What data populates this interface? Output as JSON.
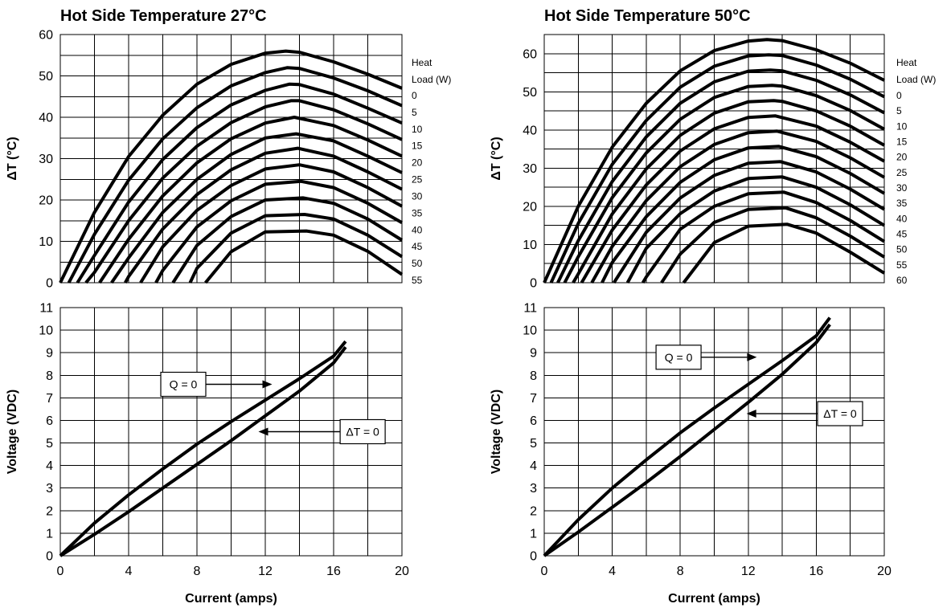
{
  "chart_data": [
    {
      "type": "line",
      "title": "Hot Side Temperature 27°C",
      "ylabel": "ΔT (°C)",
      "xlim": [
        0,
        20
      ],
      "ylim": [
        0,
        60
      ],
      "yticks": [
        0,
        10,
        20,
        30,
        40,
        50,
        60
      ],
      "grid": true,
      "legend_position": "right",
      "legend_title_lines": [
        "Heat",
        "Load (W)"
      ],
      "series": [
        {
          "name": "0",
          "x": [
            0,
            2,
            4,
            6,
            8,
            10,
            12,
            13.2,
            14,
            16,
            18,
            20
          ],
          "y": [
            0,
            17,
            30.5,
            40.5,
            48,
            52.8,
            55.5,
            56,
            55.7,
            53.4,
            50.4,
            47
          ]
        },
        {
          "name": "5",
          "x": [
            0.5,
            2,
            4,
            6,
            8,
            10,
            12,
            13.3,
            14,
            16,
            18,
            20
          ],
          "y": [
            0,
            11.7,
            24.8,
            34.8,
            42.3,
            47.6,
            50.8,
            52,
            51.8,
            49.5,
            46.4,
            42.8
          ]
        },
        {
          "name": "10",
          "x": [
            1,
            2,
            4,
            6,
            8,
            10,
            12,
            13.4,
            14,
            16,
            18,
            20
          ],
          "y": [
            0,
            6.6,
            19.5,
            29.8,
            37.5,
            43,
            46.5,
            48,
            47.9,
            45.6,
            42.2,
            38.6
          ]
        },
        {
          "name": "15",
          "x": [
            1.5,
            2,
            4,
            6,
            8,
            10,
            12,
            13.5,
            14,
            16,
            18,
            20
          ],
          "y": [
            0,
            2.5,
            15,
            25.3,
            33,
            38.7,
            42.5,
            44,
            44,
            41.8,
            38.4,
            34.6
          ]
        },
        {
          "name": "20",
          "x": [
            2.3,
            4,
            6,
            8,
            10,
            12,
            13.7,
            16,
            18,
            20
          ],
          "y": [
            0,
            10.5,
            21,
            29,
            34.8,
            38.6,
            40,
            38,
            34.5,
            30.6
          ]
        },
        {
          "name": "25",
          "x": [
            3,
            4,
            6,
            8,
            10,
            12,
            13.8,
            16,
            18,
            20
          ],
          "y": [
            0,
            6,
            17,
            25,
            31,
            35,
            36,
            34.3,
            30.6,
            26.6
          ]
        },
        {
          "name": "30",
          "x": [
            3.8,
            4,
            6,
            8,
            10,
            12,
            13.9,
            16,
            18,
            20
          ],
          "y": [
            0,
            1.5,
            13,
            21.3,
            27.3,
            31.3,
            32.5,
            30.6,
            26.8,
            22.6
          ]
        },
        {
          "name": "35",
          "x": [
            4.7,
            6,
            8,
            10,
            12,
            14,
            16,
            18,
            20
          ],
          "y": [
            0,
            8.7,
            17.5,
            23.5,
            27.5,
            28.5,
            26.8,
            23,
            18.5
          ]
        },
        {
          "name": "40",
          "x": [
            5.6,
            6,
            8,
            10,
            12,
            14.1,
            16,
            18,
            20
          ],
          "y": [
            0,
            3,
            13.5,
            19.8,
            23.8,
            24.5,
            23,
            19.2,
            14.5
          ]
        },
        {
          "name": "45",
          "x": [
            6.6,
            8,
            10,
            12,
            14.2,
            16,
            18,
            20
          ],
          "y": [
            0,
            9,
            16,
            20,
            20.5,
            19.2,
            15.4,
            10.3
          ]
        },
        {
          "name": "50",
          "x": [
            7.6,
            8,
            10,
            12,
            14.3,
            16,
            18,
            20
          ],
          "y": [
            0,
            3.5,
            12,
            16.2,
            16.5,
            15.4,
            11.5,
            6.3
          ]
        },
        {
          "name": "55",
          "x": [
            8.5,
            10,
            12,
            14.4,
            16,
            18,
            20
          ],
          "y": [
            0,
            7.5,
            12.3,
            12.5,
            11.5,
            7.6,
            2
          ]
        }
      ]
    },
    {
      "type": "line",
      "title": "Hot Side Temperature 50°C",
      "ylabel": "ΔT (°C)",
      "xlim": [
        0,
        20
      ],
      "ylim": [
        0,
        65
      ],
      "yticks": [
        0,
        10,
        20,
        30,
        40,
        50,
        60
      ],
      "grid": true,
      "legend_position": "right",
      "legend_title_lines": [
        "Heat",
        "Load (W)"
      ],
      "series": [
        {
          "name": "0",
          "x": [
            0,
            2,
            4,
            6,
            8,
            10,
            12,
            13.1,
            14,
            16,
            18,
            20
          ],
          "y": [
            0,
            20,
            35.5,
            47,
            55.5,
            60.8,
            63.3,
            63.7,
            63.4,
            61,
            57.5,
            53
          ]
        },
        {
          "name": "5",
          "x": [
            0.4,
            2,
            4,
            6,
            8,
            10,
            12,
            13.2,
            14,
            16,
            18,
            20
          ],
          "y": [
            0,
            15.5,
            31,
            42.5,
            51.2,
            56.7,
            59.4,
            59.7,
            59.5,
            57,
            53.3,
            48.7
          ]
        },
        {
          "name": "10",
          "x": [
            0.8,
            2,
            4,
            6,
            8,
            10,
            12,
            13.3,
            14,
            16,
            18,
            20
          ],
          "y": [
            0,
            11,
            26.5,
            38.2,
            47,
            52.6,
            55.4,
            55.7,
            55.5,
            53,
            49.2,
            44.5
          ]
        },
        {
          "name": "15",
          "x": [
            1.2,
            2,
            4,
            6,
            8,
            10,
            12,
            13.4,
            14,
            16,
            18,
            20
          ],
          "y": [
            0,
            6.8,
            22.3,
            34,
            42.8,
            48.5,
            51.4,
            51.7,
            51.5,
            49,
            45.1,
            40.2
          ]
        },
        {
          "name": "20",
          "x": [
            1.7,
            2,
            4,
            6,
            8,
            10,
            12,
            13.5,
            14,
            16,
            18,
            20
          ],
          "y": [
            0,
            2.3,
            18,
            29.8,
            38.6,
            44.4,
            47.4,
            47.7,
            47.5,
            45,
            41,
            36
          ]
        },
        {
          "name": "25",
          "x": [
            2.2,
            4,
            6,
            8,
            10,
            12,
            13.6,
            16,
            18,
            20
          ],
          "y": [
            0,
            13.8,
            25.6,
            34.5,
            40.3,
            43.3,
            43.7,
            41,
            36.8,
            31.8
          ]
        },
        {
          "name": "30",
          "x": [
            2.8,
            4,
            6,
            8,
            10,
            12,
            13.7,
            16,
            18,
            20
          ],
          "y": [
            0,
            9.5,
            21.5,
            30.4,
            36.2,
            39.3,
            39.7,
            37,
            32.7,
            27.6
          ]
        },
        {
          "name": "35",
          "x": [
            3.4,
            4,
            6,
            8,
            10,
            12,
            13.8,
            16,
            18,
            20
          ],
          "y": [
            0,
            5.3,
            17.3,
            26.3,
            32.2,
            35.3,
            35.7,
            33,
            28.6,
            23.4
          ]
        },
        {
          "name": "40",
          "x": [
            4.1,
            6,
            8,
            10,
            12,
            13.9,
            16,
            18,
            20
          ],
          "y": [
            0,
            13.2,
            22.2,
            28.1,
            31.3,
            31.7,
            29,
            24.5,
            19.2
          ]
        },
        {
          "name": "45",
          "x": [
            4.9,
            6,
            8,
            10,
            12,
            14,
            16,
            18,
            20
          ],
          "y": [
            0,
            9,
            18.1,
            24,
            27.3,
            27.7,
            25,
            20.4,
            15
          ]
        },
        {
          "name": "50",
          "x": [
            5.8,
            6,
            8,
            10,
            12,
            14.1,
            16,
            18,
            20
          ],
          "y": [
            0,
            1.5,
            14,
            20,
            23.3,
            23.7,
            21,
            16.3,
            10.8
          ]
        },
        {
          "name": "55",
          "x": [
            6.9,
            8,
            10,
            12,
            14.2,
            16,
            18,
            20
          ],
          "y": [
            0,
            7.5,
            15.8,
            19.2,
            19.6,
            17,
            12.2,
            6.7
          ]
        },
        {
          "name": "60",
          "x": [
            8.2,
            10,
            12,
            14.3,
            16,
            18,
            20
          ],
          "y": [
            0,
            10.5,
            14.8,
            15.3,
            13,
            8,
            2.5
          ]
        }
      ]
    },
    {
      "type": "line",
      "xlabel": "Current (amps)",
      "ylabel": "Voltage (VDC)",
      "xlim": [
        0,
        20
      ],
      "ylim": [
        0,
        11
      ],
      "xticks": [
        0,
        4,
        8,
        12,
        16,
        20
      ],
      "yticks": [
        0,
        1,
        2,
        3,
        4,
        5,
        6,
        7,
        8,
        9,
        10,
        11
      ],
      "grid": true,
      "series": [
        {
          "name": "Q = 0",
          "x": [
            0,
            2,
            4,
            6,
            8,
            10,
            12,
            14,
            16,
            16.7
          ],
          "y": [
            0,
            1.45,
            2.7,
            3.85,
            4.95,
            5.95,
            6.9,
            7.85,
            8.85,
            9.5
          ]
        },
        {
          "name": "ΔT = 0",
          "x": [
            0,
            2,
            4,
            6,
            8,
            10,
            12,
            14,
            16,
            16.7
          ],
          "y": [
            0,
            0.95,
            1.95,
            3.0,
            4.05,
            5.1,
            6.2,
            7.3,
            8.55,
            9.25
          ]
        }
      ],
      "annotations": [
        {
          "text": "Q = 0",
          "x": 7.2,
          "y": 7.6,
          "arrow_to": [
            12.4,
            7.6
          ]
        },
        {
          "text": "ΔT = 0",
          "x": 17.7,
          "y": 5.5,
          "arrow_to": [
            11.6,
            5.5
          ]
        }
      ]
    },
    {
      "type": "line",
      "xlabel": "Current (amps)",
      "ylabel": "Voltage (VDC)",
      "xlim": [
        0,
        20
      ],
      "ylim": [
        0,
        11
      ],
      "xticks": [
        0,
        4,
        8,
        12,
        16,
        20
      ],
      "yticks": [
        0,
        1,
        2,
        3,
        4,
        5,
        6,
        7,
        8,
        9,
        10,
        11
      ],
      "grid": true,
      "series": [
        {
          "name": "Q = 0",
          "x": [
            0,
            2,
            4,
            6,
            8,
            10,
            12,
            14,
            16,
            16.8
          ],
          "y": [
            0,
            1.6,
            3.0,
            4.25,
            5.45,
            6.55,
            7.6,
            8.65,
            9.75,
            10.55
          ]
        },
        {
          "name": "ΔT = 0",
          "x": [
            0,
            2,
            4,
            6,
            8,
            10,
            12,
            14,
            16,
            16.8
          ],
          "y": [
            0,
            1.05,
            2.15,
            3.25,
            4.4,
            5.6,
            6.8,
            8.05,
            9.45,
            10.25
          ]
        }
      ],
      "annotations": [
        {
          "text": "Q = 0",
          "x": 7.9,
          "y": 8.8,
          "arrow_to": [
            12.5,
            8.8
          ]
        },
        {
          "text": "ΔT = 0",
          "x": 17.4,
          "y": 6.3,
          "arrow_to": [
            11.9,
            6.3
          ]
        }
      ]
    }
  ]
}
